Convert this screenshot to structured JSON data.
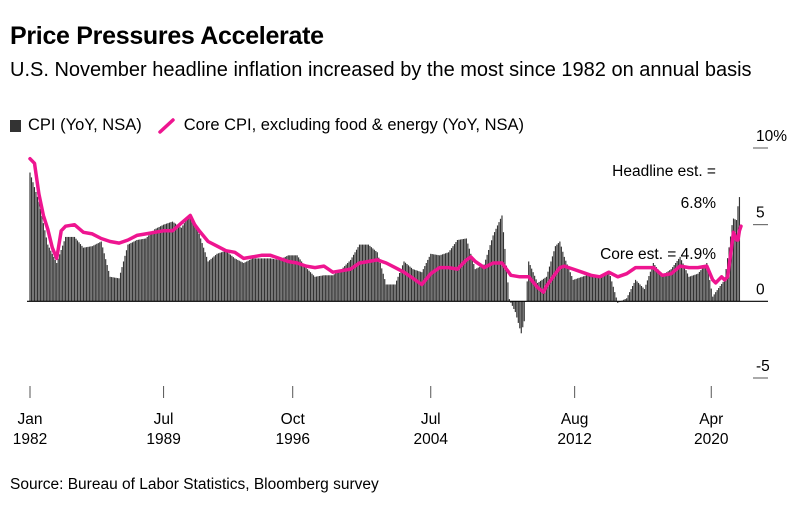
{
  "title": "Price Pressures Accelerate",
  "subtitle": "U.S. November headline inflation increased by the most since 1982 on annual basis",
  "legend": {
    "cpi_label": "CPI (YoY, NSA)",
    "core_label": "Core CPI, excluding food & energy (YoY, NSA)"
  },
  "annotations": {
    "headline_line1": "Headline est. =",
    "headline_line2": "6.8%",
    "core": "Core est. = 4.9%"
  },
  "source": "Source: Bureau of Labor Statistics, Bloomberg survey",
  "colors": {
    "bars": "#333333",
    "core_line": "#ee1590",
    "axis": "#000000"
  },
  "chart_data": {
    "type": "bar",
    "title": "Price Pressures Accelerate",
    "x_range": [
      1982.0,
      2021.92
    ],
    "ylim": [
      -5,
      10
    ],
    "y_ticks": [
      {
        "value": 10,
        "label": "10%"
      },
      {
        "value": 5,
        "label": "5"
      },
      {
        "value": 0,
        "label": "0"
      },
      {
        "value": -5,
        "label": "-5"
      }
    ],
    "x_ticks": [
      {
        "value": 1982.0,
        "label1": "Jan",
        "label2": "1982"
      },
      {
        "value": 1989.5,
        "label1": "Jul",
        "label2": "1989"
      },
      {
        "value": 1996.75,
        "label1": "Oct",
        "label2": "1996"
      },
      {
        "value": 2004.5,
        "label1": "Jul",
        "label2": "2004"
      },
      {
        "value": 2012.58,
        "label1": "Aug",
        "label2": "2012"
      },
      {
        "value": 2020.25,
        "label1": "Apr",
        "label2": "2020"
      }
    ],
    "series": [
      {
        "name": "CPI (YoY, NSA)",
        "kind": "bar",
        "points": [
          [
            1982.0,
            8.4
          ],
          [
            1982.5,
            6.5
          ],
          [
            1983.0,
            3.7
          ],
          [
            1983.5,
            2.5
          ],
          [
            1984.0,
            4.2
          ],
          [
            1984.5,
            4.2
          ],
          [
            1985.0,
            3.5
          ],
          [
            1985.5,
            3.6
          ],
          [
            1986.0,
            3.9
          ],
          [
            1986.5,
            1.6
          ],
          [
            1987.0,
            1.5
          ],
          [
            1987.5,
            3.7
          ],
          [
            1988.0,
            4.0
          ],
          [
            1988.5,
            4.1
          ],
          [
            1989.0,
            4.7
          ],
          [
            1989.5,
            5.0
          ],
          [
            1990.0,
            5.2
          ],
          [
            1990.5,
            4.8
          ],
          [
            1991.0,
            5.7
          ],
          [
            1991.5,
            4.4
          ],
          [
            1992.0,
            2.6
          ],
          [
            1992.5,
            3.1
          ],
          [
            1993.0,
            3.3
          ],
          [
            1993.5,
            2.8
          ],
          [
            1994.0,
            2.5
          ],
          [
            1994.5,
            2.8
          ],
          [
            1995.0,
            2.8
          ],
          [
            1995.5,
            2.8
          ],
          [
            1996.0,
            2.7
          ],
          [
            1996.5,
            3.0
          ],
          [
            1997.0,
            3.0
          ],
          [
            1997.5,
            2.2
          ],
          [
            1998.0,
            1.6
          ],
          [
            1998.5,
            1.7
          ],
          [
            1999.0,
            1.7
          ],
          [
            1999.5,
            2.1
          ],
          [
            2000.0,
            2.7
          ],
          [
            2000.5,
            3.7
          ],
          [
            2001.0,
            3.7
          ],
          [
            2001.5,
            3.2
          ],
          [
            2002.0,
            1.1
          ],
          [
            2002.5,
            1.1
          ],
          [
            2003.0,
            2.6
          ],
          [
            2003.5,
            2.1
          ],
          [
            2004.0,
            1.9
          ],
          [
            2004.5,
            3.1
          ],
          [
            2005.0,
            3.0
          ],
          [
            2005.5,
            3.2
          ],
          [
            2006.0,
            4.0
          ],
          [
            2006.5,
            4.1
          ],
          [
            2007.0,
            2.1
          ],
          [
            2007.5,
            2.4
          ],
          [
            2008.0,
            4.3
          ],
          [
            2008.5,
            5.6
          ],
          [
            2008.92,
            0.1
          ],
          [
            2009.25,
            -0.7
          ],
          [
            2009.58,
            -2.1
          ],
          [
            2009.75,
            -1.3
          ],
          [
            2010.0,
            2.6
          ],
          [
            2010.5,
            1.2
          ],
          [
            2011.0,
            1.6
          ],
          [
            2011.5,
            3.6
          ],
          [
            2011.75,
            3.9
          ],
          [
            2012.0,
            2.9
          ],
          [
            2012.5,
            1.4
          ],
          [
            2013.0,
            1.6
          ],
          [
            2013.5,
            1.8
          ],
          [
            2014.0,
            1.6
          ],
          [
            2014.5,
            2.0
          ],
          [
            2015.0,
            -0.1
          ],
          [
            2015.5,
            0.2
          ],
          [
            2016.0,
            1.4
          ],
          [
            2016.5,
            0.8
          ],
          [
            2017.0,
            2.5
          ],
          [
            2017.5,
            1.7
          ],
          [
            2018.0,
            2.1
          ],
          [
            2018.5,
            2.9
          ],
          [
            2019.0,
            1.6
          ],
          [
            2019.5,
            1.8
          ],
          [
            2020.0,
            2.5
          ],
          [
            2020.33,
            0.3
          ],
          [
            2020.5,
            0.6
          ],
          [
            2021.0,
            1.4
          ],
          [
            2021.33,
            4.2
          ],
          [
            2021.42,
            5.0
          ],
          [
            2021.5,
            5.4
          ],
          [
            2021.67,
            5.3
          ],
          [
            2021.75,
            6.2
          ],
          [
            2021.83,
            6.8
          ]
        ]
      },
      {
        "name": "Core CPI, excluding food & energy (YoY, NSA)",
        "kind": "line",
        "points": [
          [
            1982.0,
            9.3
          ],
          [
            1982.25,
            9.0
          ],
          [
            1982.5,
            7.0
          ],
          [
            1982.75,
            5.6
          ],
          [
            1983.0,
            4.7
          ],
          [
            1983.25,
            3.5
          ],
          [
            1983.5,
            2.8
          ],
          [
            1983.75,
            4.6
          ],
          [
            1984.0,
            4.9
          ],
          [
            1984.5,
            5.0
          ],
          [
            1985.0,
            4.5
          ],
          [
            1985.5,
            4.4
          ],
          [
            1986.0,
            4.1
          ],
          [
            1986.5,
            3.9
          ],
          [
            1987.0,
            3.8
          ],
          [
            1987.5,
            4.0
          ],
          [
            1988.0,
            4.3
          ],
          [
            1988.5,
            4.4
          ],
          [
            1989.0,
            4.5
          ],
          [
            1989.5,
            4.6
          ],
          [
            1990.0,
            4.6
          ],
          [
            1990.5,
            5.1
          ],
          [
            1991.0,
            5.6
          ],
          [
            1991.25,
            5.0
          ],
          [
            1991.5,
            4.6
          ],
          [
            1992.0,
            3.9
          ],
          [
            1992.5,
            3.6
          ],
          [
            1993.0,
            3.3
          ],
          [
            1993.5,
            3.2
          ],
          [
            1994.0,
            2.8
          ],
          [
            1994.5,
            2.9
          ],
          [
            1995.0,
            3.0
          ],
          [
            1995.5,
            3.0
          ],
          [
            1996.0,
            2.8
          ],
          [
            1996.5,
            2.6
          ],
          [
            1997.0,
            2.5
          ],
          [
            1997.5,
            2.3
          ],
          [
            1998.0,
            2.2
          ],
          [
            1998.5,
            2.3
          ],
          [
            1999.0,
            1.9
          ],
          [
            1999.5,
            2.0
          ],
          [
            2000.0,
            2.1
          ],
          [
            2000.5,
            2.5
          ],
          [
            2001.0,
            2.6
          ],
          [
            2001.5,
            2.7
          ],
          [
            2002.0,
            2.5
          ],
          [
            2002.5,
            2.2
          ],
          [
            2003.0,
            1.9
          ],
          [
            2003.5,
            1.5
          ],
          [
            2004.0,
            1.1
          ],
          [
            2004.5,
            1.8
          ],
          [
            2005.0,
            2.2
          ],
          [
            2005.5,
            2.2
          ],
          [
            2006.0,
            2.1
          ],
          [
            2006.5,
            2.7
          ],
          [
            2006.75,
            2.9
          ],
          [
            2007.0,
            2.6
          ],
          [
            2007.5,
            2.2
          ],
          [
            2008.0,
            2.5
          ],
          [
            2008.5,
            2.5
          ],
          [
            2009.0,
            1.7
          ],
          [
            2009.5,
            1.6
          ],
          [
            2010.0,
            1.6
          ],
          [
            2010.5,
            0.9
          ],
          [
            2010.83,
            0.6
          ],
          [
            2011.0,
            1.0
          ],
          [
            2011.5,
            1.8
          ],
          [
            2011.75,
            2.2
          ],
          [
            2012.0,
            2.3
          ],
          [
            2012.5,
            2.1
          ],
          [
            2013.0,
            1.9
          ],
          [
            2013.5,
            1.7
          ],
          [
            2014.0,
            1.6
          ],
          [
            2014.5,
            1.9
          ],
          [
            2015.0,
            1.6
          ],
          [
            2015.5,
            1.8
          ],
          [
            2016.0,
            2.2
          ],
          [
            2016.5,
            2.2
          ],
          [
            2017.0,
            2.2
          ],
          [
            2017.5,
            1.7
          ],
          [
            2018.0,
            1.8
          ],
          [
            2018.5,
            2.3
          ],
          [
            2019.0,
            2.2
          ],
          [
            2019.5,
            2.2
          ],
          [
            2020.0,
            2.3
          ],
          [
            2020.33,
            1.4
          ],
          [
            2020.5,
            1.2
          ],
          [
            2020.83,
            1.6
          ],
          [
            2021.0,
            1.4
          ],
          [
            2021.17,
            1.6
          ],
          [
            2021.33,
            3.0
          ],
          [
            2021.42,
            3.8
          ],
          [
            2021.5,
            4.5
          ],
          [
            2021.58,
            4.3
          ],
          [
            2021.67,
            4.0
          ],
          [
            2021.75,
            4.0
          ],
          [
            2021.83,
            4.6
          ],
          [
            2021.92,
            4.9
          ]
        ]
      }
    ]
  }
}
